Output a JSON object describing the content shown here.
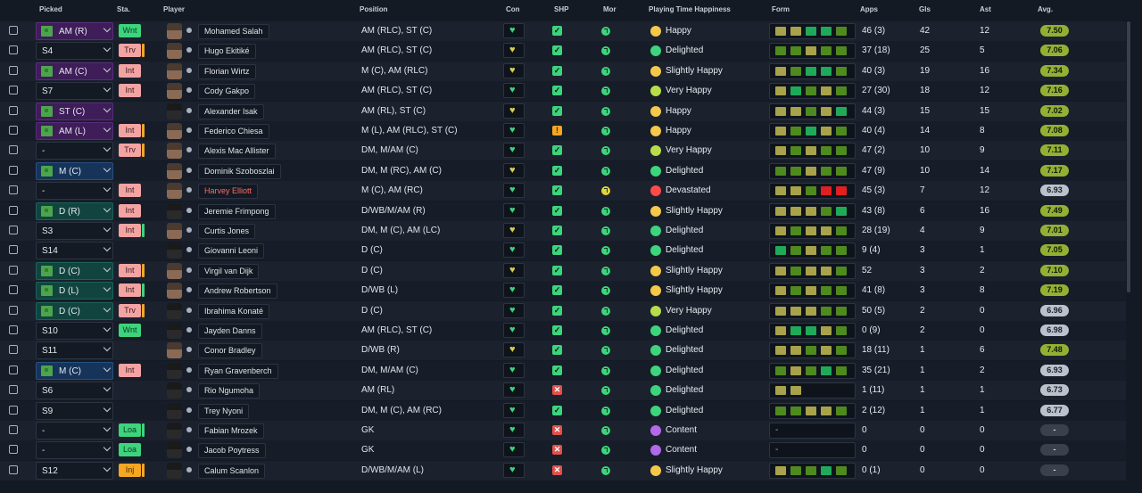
{
  "columns": {
    "picked": "Picked",
    "sta": "Sta.",
    "player": "Player",
    "position": "Position",
    "con": "Con",
    "shp": "SHP",
    "mor": "Mor",
    "happiness": "Playing Time Happiness",
    "form": "Form",
    "apps": "Apps",
    "gls": "Gls",
    "ast": "Ast",
    "avg": "Avg."
  },
  "colors": {
    "form_dark_green": "#4f8a1e",
    "form_green": "#1faa5a",
    "form_olive": "#a8a34a",
    "form_red": "#e02020",
    "avg_green": "#94b033",
    "avg_grey": "#bcc2cc"
  },
  "rows": [
    {
      "picked": "AM (R)",
      "pick_style": "purple",
      "pitch": true,
      "sta": "Wnt",
      "sta_style": "wnt",
      "sta_bar": "",
      "name": "Mohamed Salah",
      "name_red": false,
      "face": "light",
      "position": "AM (RLC), ST (C)",
      "con": "green",
      "shp": "ok",
      "mor": "green",
      "happiness": "Happy",
      "hap_icon": "happy",
      "form": [
        "o",
        "o",
        "g",
        "g",
        "d"
      ],
      "apps": "46 (3)",
      "gls": "42",
      "ast": "12",
      "avg": "7.50",
      "avg_style": "green"
    },
    {
      "picked": "S4",
      "pick_style": "plain",
      "pitch": false,
      "sta": "Trv",
      "sta_style": "trv",
      "sta_bar": "orange",
      "name": "Hugo Ekitiké",
      "name_red": false,
      "face": "light",
      "position": "AM (RLC), ST (C)",
      "con": "yellow",
      "shp": "ok",
      "mor": "green",
      "happiness": "Delighted",
      "hap_icon": "delighted",
      "form": [
        "d",
        "d",
        "o",
        "d",
        "d"
      ],
      "apps": "37 (18)",
      "gls": "25",
      "ast": "5",
      "avg": "7.06",
      "avg_style": "green"
    },
    {
      "picked": "AM (C)",
      "pick_style": "purple",
      "pitch": true,
      "sta": "Int",
      "sta_style": "int",
      "sta_bar": "",
      "name": "Florian Wirtz",
      "name_red": false,
      "face": "light",
      "position": "M (C), AM (RLC)",
      "con": "yellow",
      "shp": "ok",
      "mor": "green",
      "happiness": "Slightly Happy",
      "hap_icon": "shappy",
      "form": [
        "o",
        "d",
        "g",
        "g",
        "d"
      ],
      "apps": "40 (3)",
      "gls": "19",
      "ast": "16",
      "avg": "7.34",
      "avg_style": "green"
    },
    {
      "picked": "S7",
      "pick_style": "plain",
      "pitch": false,
      "sta": "Int",
      "sta_style": "int",
      "sta_bar": "",
      "name": "Cody Gakpo",
      "name_red": false,
      "face": "light",
      "position": "AM (RLC), ST (C)",
      "con": "green",
      "shp": "ok",
      "mor": "green",
      "happiness": "Very Happy",
      "hap_icon": "vhappy",
      "form": [
        "o",
        "g",
        "d",
        "o",
        "d"
      ],
      "apps": "27 (30)",
      "gls": "18",
      "ast": "12",
      "avg": "7.16",
      "avg_style": "green"
    },
    {
      "picked": "ST (C)",
      "pick_style": "purple",
      "pitch": true,
      "sta": "",
      "sta_style": "",
      "sta_bar": "",
      "name": "Alexander Isak",
      "name_red": false,
      "face": "dark",
      "position": "AM (RL), ST (C)",
      "con": "yellow",
      "shp": "ok",
      "mor": "green",
      "happiness": "Happy",
      "hap_icon": "happy",
      "form": [
        "o",
        "o",
        "d",
        "o",
        "g"
      ],
      "apps": "44 (3)",
      "gls": "15",
      "ast": "15",
      "avg": "7.02",
      "avg_style": "green"
    },
    {
      "picked": "AM (L)",
      "pick_style": "purple",
      "pitch": true,
      "sta": "Int",
      "sta_style": "int",
      "sta_bar": "orange",
      "name": "Federico Chiesa",
      "name_red": false,
      "face": "light",
      "position": "M (L), AM (RLC), ST (C)",
      "con": "green",
      "shp": "warn",
      "mor": "green",
      "happiness": "Happy",
      "hap_icon": "happy",
      "form": [
        "o",
        "d",
        "g",
        "o",
        "d"
      ],
      "apps": "40 (4)",
      "gls": "14",
      "ast": "8",
      "avg": "7.08",
      "avg_style": "green"
    },
    {
      "picked": "-",
      "pick_style": "plain",
      "pitch": false,
      "sta": "Trv",
      "sta_style": "trv",
      "sta_bar": "orange",
      "name": "Alexis Mac Allister",
      "name_red": false,
      "face": "light",
      "position": "DM, M/AM (C)",
      "con": "green",
      "shp": "ok",
      "mor": "green",
      "happiness": "Very Happy",
      "hap_icon": "vhappy",
      "form": [
        "o",
        "d",
        "o",
        "d",
        "d"
      ],
      "apps": "47 (2)",
      "gls": "10",
      "ast": "9",
      "avg": "7.11",
      "avg_style": "green"
    },
    {
      "picked": "M (C)",
      "pick_style": "blue",
      "pitch": true,
      "sta": "",
      "sta_style": "",
      "sta_bar": "",
      "name": "Dominik Szoboszlai",
      "name_red": false,
      "face": "light",
      "position": "DM, M (RC), AM (C)",
      "con": "yellow",
      "shp": "ok",
      "mor": "green",
      "happiness": "Delighted",
      "hap_icon": "delighted",
      "form": [
        "d",
        "d",
        "o",
        "d",
        "d"
      ],
      "apps": "47 (9)",
      "gls": "10",
      "ast": "14",
      "avg": "7.17",
      "avg_style": "green"
    },
    {
      "picked": "-",
      "pick_style": "plain",
      "pitch": false,
      "sta": "Int",
      "sta_style": "int",
      "sta_bar": "",
      "name": "Harvey Elliott",
      "name_red": true,
      "face": "light",
      "position": "M (C), AM (RC)",
      "con": "green",
      "shp": "ok",
      "mor": "yellow",
      "happiness": "Devastated",
      "hap_icon": "devastated",
      "form": [
        "o",
        "o",
        "d",
        "r",
        "r"
      ],
      "apps": "45 (3)",
      "gls": "7",
      "ast": "12",
      "avg": "6.93",
      "avg_style": "grey"
    },
    {
      "picked": "D (R)",
      "pick_style": "teal",
      "pitch": true,
      "sta": "Int",
      "sta_style": "int",
      "sta_bar": "",
      "name": "Jeremie Frimpong",
      "name_red": false,
      "face": "dark",
      "position": "D/WB/M/AM (R)",
      "con": "green",
      "shp": "ok",
      "mor": "green",
      "happiness": "Slightly Happy",
      "hap_icon": "shappy",
      "form": [
        "o",
        "o",
        "o",
        "d",
        "g"
      ],
      "apps": "43 (8)",
      "gls": "6",
      "ast": "16",
      "avg": "7.49",
      "avg_style": "green"
    },
    {
      "picked": "S3",
      "pick_style": "plain",
      "pitch": false,
      "sta": "Int",
      "sta_style": "int",
      "sta_bar": "green",
      "name": "Curtis Jones",
      "name_red": false,
      "face": "light",
      "position": "DM, M (C), AM (LC)",
      "con": "yellow",
      "shp": "ok",
      "mor": "green",
      "happiness": "Delighted",
      "hap_icon": "delighted",
      "form": [
        "o",
        "d",
        "o",
        "o",
        "d"
      ],
      "apps": "28 (19)",
      "gls": "4",
      "ast": "9",
      "avg": "7.01",
      "avg_style": "green"
    },
    {
      "picked": "S14",
      "pick_style": "plain",
      "pitch": false,
      "sta": "",
      "sta_style": "",
      "sta_bar": "",
      "name": "Giovanni Leoni",
      "name_red": false,
      "face": "dark",
      "position": "D (C)",
      "con": "green",
      "shp": "ok",
      "mor": "green",
      "happiness": "Delighted",
      "hap_icon": "delighted",
      "form": [
        "g",
        "d",
        "o",
        "d",
        "d"
      ],
      "apps": "9 (4)",
      "gls": "3",
      "ast": "1",
      "avg": "7.05",
      "avg_style": "green"
    },
    {
      "picked": "D (C)",
      "pick_style": "teal",
      "pitch": true,
      "sta": "Int",
      "sta_style": "int",
      "sta_bar": "orange",
      "name": "Virgil van Dijk",
      "name_red": false,
      "face": "light",
      "position": "D (C)",
      "con": "yellow",
      "shp": "ok",
      "mor": "green",
      "happiness": "Slightly Happy",
      "hap_icon": "shappy",
      "form": [
        "o",
        "d",
        "o",
        "o",
        "d"
      ],
      "apps": "52",
      "gls": "3",
      "ast": "2",
      "avg": "7.10",
      "avg_style": "green"
    },
    {
      "picked": "D (L)",
      "pick_style": "teal",
      "pitch": true,
      "sta": "Int",
      "sta_style": "int",
      "sta_bar": "green",
      "name": "Andrew Robertson",
      "name_red": false,
      "face": "light",
      "position": "D/WB (L)",
      "con": "green",
      "shp": "ok",
      "mor": "green",
      "happiness": "Slightly Happy",
      "hap_icon": "shappy",
      "form": [
        "o",
        "d",
        "o",
        "d",
        "d"
      ],
      "apps": "41 (8)",
      "gls": "3",
      "ast": "8",
      "avg": "7.19",
      "avg_style": "green"
    },
    {
      "picked": "D (C)",
      "pick_style": "teal",
      "pitch": true,
      "sta": "Trv",
      "sta_style": "trv",
      "sta_bar": "orange",
      "name": "Ibrahima Konaté",
      "name_red": false,
      "face": "dark",
      "position": "D (C)",
      "con": "green",
      "shp": "ok",
      "mor": "green",
      "happiness": "Very Happy",
      "hap_icon": "vhappy",
      "form": [
        "o",
        "o",
        "o",
        "d",
        "d"
      ],
      "apps": "50 (5)",
      "gls": "2",
      "ast": "0",
      "avg": "6.96",
      "avg_style": "grey"
    },
    {
      "picked": "S10",
      "pick_style": "plain",
      "pitch": false,
      "sta": "Wnt",
      "sta_style": "wnt",
      "sta_bar": "",
      "name": "Jayden Danns",
      "name_red": false,
      "face": "dark",
      "position": "AM (RLC), ST (C)",
      "con": "green",
      "shp": "ok",
      "mor": "green",
      "happiness": "Delighted",
      "hap_icon": "delighted",
      "form": [
        "o",
        "g",
        "g",
        "o",
        "d"
      ],
      "apps": "0 (9)",
      "gls": "2",
      "ast": "0",
      "avg": "6.98",
      "avg_style": "grey"
    },
    {
      "picked": "S11",
      "pick_style": "plain",
      "pitch": false,
      "sta": "",
      "sta_style": "",
      "sta_bar": "",
      "name": "Conor Bradley",
      "name_red": false,
      "face": "light",
      "position": "D/WB (R)",
      "con": "yellow",
      "shp": "ok",
      "mor": "green",
      "happiness": "Delighted",
      "hap_icon": "delighted",
      "form": [
        "o",
        "o",
        "d",
        "o",
        "d"
      ],
      "apps": "18 (11)",
      "gls": "1",
      "ast": "6",
      "avg": "7.48",
      "avg_style": "green"
    },
    {
      "picked": "M (C)",
      "pick_style": "blue",
      "pitch": true,
      "sta": "Int",
      "sta_style": "int",
      "sta_bar": "",
      "name": "Ryan Gravenberch",
      "name_red": false,
      "face": "dark",
      "position": "DM, M/AM (C)",
      "con": "green",
      "shp": "ok",
      "mor": "green",
      "happiness": "Delighted",
      "hap_icon": "delighted",
      "form": [
        "d",
        "o",
        "d",
        "g",
        "d"
      ],
      "apps": "35 (21)",
      "gls": "1",
      "ast": "2",
      "avg": "6.93",
      "avg_style": "grey"
    },
    {
      "picked": "S6",
      "pick_style": "plain",
      "pitch": false,
      "sta": "",
      "sta_style": "",
      "sta_bar": "",
      "name": "Rio Ngumoha",
      "name_red": false,
      "face": "dark",
      "position": "AM (RL)",
      "con": "green",
      "shp": "bad",
      "mor": "green",
      "happiness": "Delighted",
      "hap_icon": "delighted",
      "form": [
        "o",
        "o"
      ],
      "apps": "1 (11)",
      "gls": "1",
      "ast": "1",
      "avg": "6.73",
      "avg_style": "grey"
    },
    {
      "picked": "S9",
      "pick_style": "plain",
      "pitch": false,
      "sta": "",
      "sta_style": "",
      "sta_bar": "",
      "name": "Trey Nyoni",
      "name_red": false,
      "face": "dark",
      "position": "DM, M (C), AM (RC)",
      "con": "green",
      "shp": "ok",
      "mor": "green",
      "happiness": "Delighted",
      "hap_icon": "delighted",
      "form": [
        "d",
        "d",
        "o",
        "o",
        "d"
      ],
      "apps": "2 (12)",
      "gls": "1",
      "ast": "1",
      "avg": "6.77",
      "avg_style": "grey"
    },
    {
      "picked": "-",
      "pick_style": "plain",
      "pitch": false,
      "sta": "Loa",
      "sta_style": "loa",
      "sta_bar": "green",
      "name": "Fabian Mrozek",
      "name_red": false,
      "face": "dark",
      "position": "GK",
      "con": "green",
      "shp": "bad",
      "mor": "green",
      "happiness": "Content",
      "hap_icon": "content",
      "form": [],
      "form_dash": "-",
      "apps": "0",
      "gls": "0",
      "ast": "0",
      "avg": "-",
      "avg_style": "dash"
    },
    {
      "picked": "-",
      "pick_style": "plain",
      "pitch": false,
      "sta": "Loa",
      "sta_style": "loa",
      "sta_bar": "",
      "name": "Jacob Poytress",
      "name_red": false,
      "face": "dark",
      "position": "GK",
      "con": "green",
      "shp": "bad",
      "mor": "green",
      "happiness": "Content",
      "hap_icon": "content",
      "form": [],
      "form_dash": "-",
      "apps": "0",
      "gls": "0",
      "ast": "0",
      "avg": "-",
      "avg_style": "dash"
    },
    {
      "picked": "S12",
      "pick_style": "plain",
      "pitch": false,
      "sta": "Inj",
      "sta_style": "inj",
      "sta_bar": "orange",
      "name": "Calum Scanlon",
      "name_red": false,
      "face": "dark",
      "position": "D/WB/M/AM (L)",
      "con": "green",
      "shp": "bad",
      "mor": "green",
      "happiness": "Slightly Happy",
      "hap_icon": "shappy",
      "form": [
        "o",
        "d",
        "d",
        "g",
        "d"
      ],
      "apps": "0 (1)",
      "gls": "0",
      "ast": "0",
      "avg": "-",
      "avg_style": "dash"
    }
  ]
}
